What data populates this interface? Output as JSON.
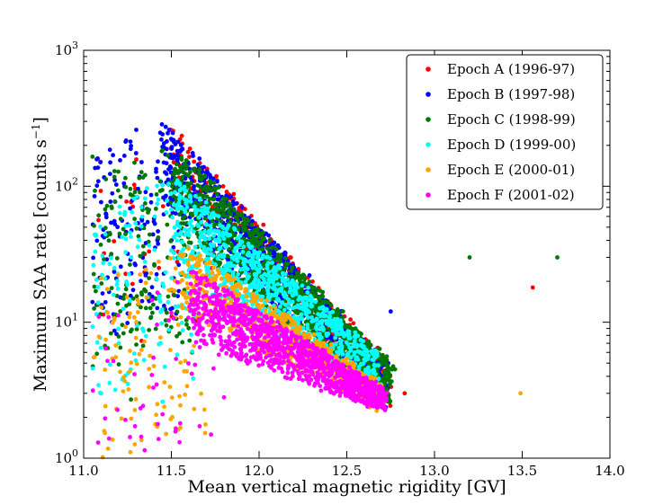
{
  "chart_data": {
    "type": "scatter",
    "title": "",
    "xlabel": "Mean vertical magnetic rigidity [GV]",
    "ylabel_main": "Maximum SAA rate [counts s",
    "ylabel_sup": "−1",
    "ylabel_end": "]",
    "xlim": [
      11.0,
      14.0
    ],
    "ylim": [
      1,
      1000
    ],
    "yscale": "log",
    "x_ticks": [
      11.0,
      11.5,
      12.0,
      12.5,
      13.0,
      13.5,
      14.0
    ],
    "x_tick_labels": [
      "11.0",
      "11.5",
      "12.0",
      "12.5",
      "13.0",
      "13.5",
      "14.0"
    ],
    "y_ticks": [
      1,
      10,
      100,
      1000
    ],
    "y_tick_base": [
      "10",
      "10",
      "10",
      "10"
    ],
    "y_tick_exp": [
      "0",
      "1",
      "2",
      "3"
    ],
    "legend_position": "top-right",
    "series": [
      {
        "name": "Epoch A (1996-97)",
        "color": "#ff0000",
        "band": {
          "x_start": 11.5,
          "x_end": 12.75,
          "top_start": 270,
          "top_end": 5,
          "bottom_start": 110,
          "bottom_end": 2.3
        },
        "core_count": 300,
        "scatter_count": 30,
        "outliers": [
          [
            13.56,
            18
          ],
          [
            11.33,
            7.3
          ],
          [
            11.73,
            25
          ],
          [
            12.83,
            3.0
          ]
        ]
      },
      {
        "name": "Epoch B (1997-98)",
        "color": "#0000ff",
        "band": {
          "x_start": 11.45,
          "x_end": 12.72,
          "top_start": 290,
          "top_end": 5,
          "bottom_start": 70,
          "bottom_end": 2.3
        },
        "core_count": 1000,
        "scatter_count": 160,
        "outliers": [
          [
            11.3,
            260
          ],
          [
            11.08,
            160
          ],
          [
            12.75,
            12
          ],
          [
            11.4,
            55
          ]
        ]
      },
      {
        "name": "Epoch C (1998-99)",
        "color": "#007700",
        "band": {
          "x_start": 11.5,
          "x_end": 12.75,
          "top_start": 210,
          "top_end": 5,
          "bottom_start": 45,
          "bottom_end": 2.3
        },
        "core_count": 1100,
        "scatter_count": 170,
        "outliers": [
          [
            13.2,
            30
          ],
          [
            13.7,
            30
          ],
          [
            11.2,
            4.9
          ],
          [
            11.27,
            2.7
          ],
          [
            11.05,
            165
          ]
        ]
      },
      {
        "name": "Epoch D (1999-00)",
        "color": "#00ffff",
        "band": {
          "x_start": 11.5,
          "x_end": 12.68,
          "top_start": 120,
          "top_end": 6,
          "bottom_start": 25,
          "bottom_end": 2.3
        },
        "core_count": 1000,
        "scatter_count": 130,
        "outliers": [
          [
            11.1,
            3.0
          ],
          [
            11.22,
            3.8
          ],
          [
            11.45,
            2.6
          ]
        ]
      },
      {
        "name": "Epoch E (2000-01)",
        "color": "#ffa500",
        "band": {
          "x_start": 11.55,
          "x_end": 12.7,
          "top_start": 40,
          "top_end": 3.5,
          "bottom_start": 12,
          "bottom_end": 2.2
        },
        "core_count": 700,
        "scatter_count": 110,
        "outliers": [
          [
            13.49,
            3.0
          ],
          [
            11.42,
            2.5
          ]
        ]
      },
      {
        "name": "Epoch F (2001-02)",
        "color": "#ff00ff",
        "band": {
          "x_start": 11.6,
          "x_end": 12.72,
          "top_start": 25,
          "top_end": 3.2,
          "bottom_start": 7,
          "bottom_end": 2.2
        },
        "core_count": 1100,
        "scatter_count": 60,
        "outliers": [
          [
            11.8,
            2.8
          ]
        ]
      }
    ]
  }
}
